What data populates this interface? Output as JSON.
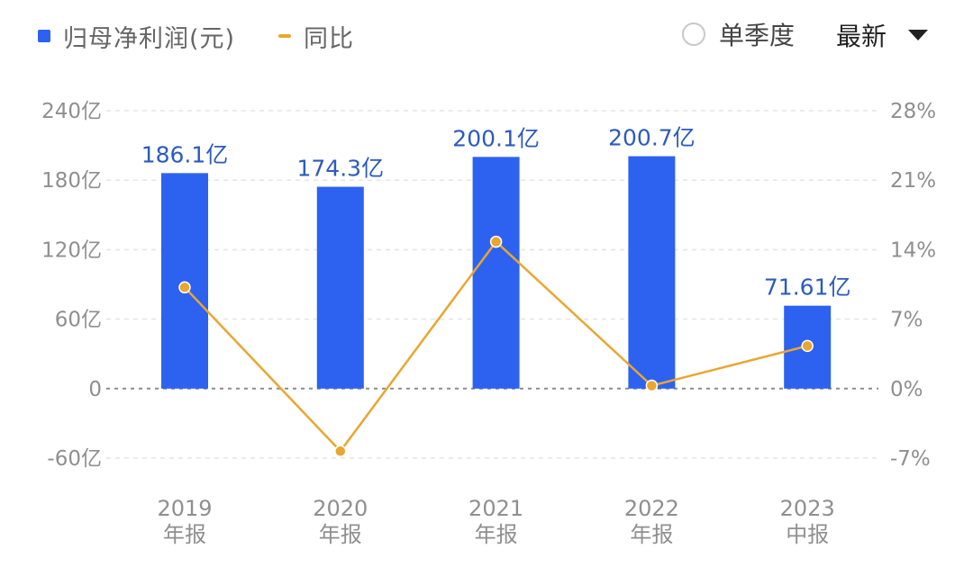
{
  "legend": {
    "bar_label": "归母净利润(元)",
    "line_label": "同比"
  },
  "controls": {
    "quarter_toggle_label": "单季度",
    "period_select_value": "最新"
  },
  "colors": {
    "bar": "#2d62f0",
    "line": "#e9a630",
    "grid": "#e6e6e6"
  },
  "chart_data": {
    "type": "bar",
    "categories": [
      [
        "2019",
        "年报"
      ],
      [
        "2020",
        "年报"
      ],
      [
        "2021",
        "年报"
      ],
      [
        "2022",
        "年报"
      ],
      [
        "2023",
        "中报"
      ]
    ],
    "series": [
      {
        "name": "归母净利润(元)",
        "type": "bar",
        "axis": "left",
        "values": [
          186.1,
          174.3,
          200.1,
          200.7,
          71.61
        ],
        "labels": [
          "186.1亿",
          "174.3亿",
          "200.1亿",
          "200.7亿",
          "71.61亿"
        ]
      },
      {
        "name": "同比",
        "type": "line",
        "axis": "right",
        "values": [
          10.2,
          -6.3,
          14.8,
          0.3,
          4.3
        ]
      }
    ],
    "y_left": {
      "ticks": [
        240,
        180,
        120,
        60,
        0,
        -60
      ],
      "tick_labels": [
        "240亿",
        "180亿",
        "120亿",
        "60亿",
        "0",
        "-60亿"
      ],
      "ylim": [
        -60,
        240
      ]
    },
    "y_right": {
      "ticks": [
        28,
        21,
        14,
        7,
        0,
        -7
      ],
      "tick_labels": [
        "28%",
        "21%",
        "14%",
        "7%",
        "0%",
        "-7%"
      ],
      "ylim": [
        -7,
        28
      ]
    },
    "grid": true,
    "legend_position": "top-left"
  }
}
